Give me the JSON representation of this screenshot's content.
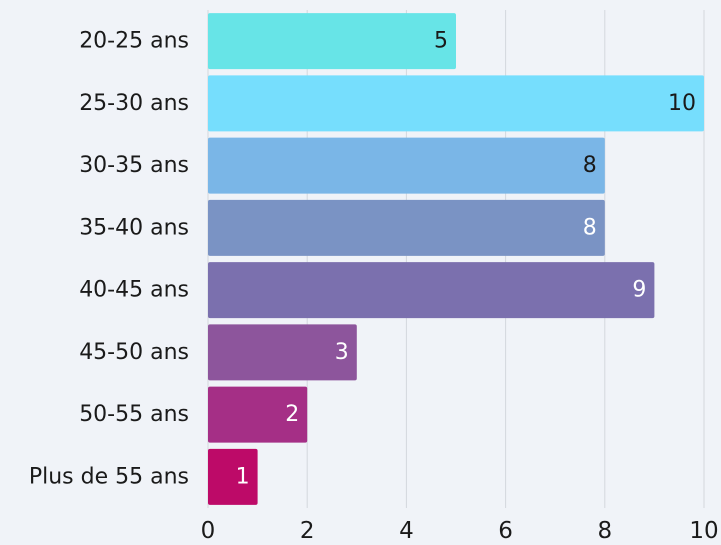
{
  "chart_data": {
    "type": "bar",
    "orientation": "horizontal",
    "categories": [
      "20-25 ans",
      "25-30 ans",
      "30-35 ans",
      "35-40 ans",
      "40-45 ans",
      "45-50 ans",
      "50-55 ans",
      "Plus de 55 ans"
    ],
    "values": [
      5,
      10,
      8,
      8,
      9,
      3,
      2,
      1
    ],
    "bar_colors": [
      "#67e4e7",
      "#76defd",
      "#7ab6e7",
      "#7a93c4",
      "#7b70ae",
      "#8d559c",
      "#a52f86",
      "#bd0a68"
    ],
    "value_label_colors": [
      "#1a1a1a",
      "#1a1a1a",
      "#1a1a1a",
      "#ffffff",
      "#ffffff",
      "#ffffff",
      "#ffffff",
      "#ffffff"
    ],
    "x_ticks": [
      "0",
      "2",
      "4",
      "6",
      "8",
      "10"
    ],
    "xlim": [
      0,
      10
    ],
    "grid": true,
    "legend": "none",
    "title": "",
    "xlabel": "",
    "ylabel": ""
  }
}
